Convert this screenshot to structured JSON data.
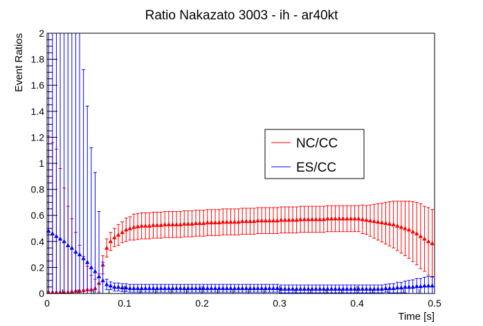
{
  "chart_data": {
    "type": "scatter",
    "title": "Ratio Nakazato 3003 - ih - ar40kt",
    "xlabel": "Time [s]",
    "ylabel": "Event Ratios",
    "xlim": [
      0,
      0.5
    ],
    "ylim": [
      0,
      2
    ],
    "x_ticks": [
      "0",
      "0.1",
      "0.2",
      "0.3",
      "0.4",
      "0.5"
    ],
    "y_ticks": [
      "0",
      "0.2",
      "0.4",
      "0.6",
      "0.8",
      "1",
      "1.2",
      "1.4",
      "1.6",
      "1.8",
      "2"
    ],
    "grid": false,
    "legend_position": "center-right",
    "x": [
      0.002,
      0.007,
      0.012,
      0.017,
      0.022,
      0.027,
      0.032,
      0.037,
      0.042,
      0.047,
      0.052,
      0.057,
      0.062,
      0.067,
      0.072,
      0.077,
      0.082,
      0.087,
      0.092,
      0.097,
      0.102,
      0.107,
      0.112,
      0.117,
      0.122,
      0.127,
      0.132,
      0.137,
      0.142,
      0.147,
      0.152,
      0.157,
      0.162,
      0.167,
      0.172,
      0.177,
      0.182,
      0.187,
      0.192,
      0.197,
      0.202,
      0.207,
      0.212,
      0.217,
      0.222,
      0.227,
      0.232,
      0.237,
      0.242,
      0.247,
      0.252,
      0.257,
      0.262,
      0.267,
      0.272,
      0.277,
      0.282,
      0.287,
      0.292,
      0.297,
      0.302,
      0.307,
      0.312,
      0.317,
      0.322,
      0.327,
      0.332,
      0.337,
      0.342,
      0.347,
      0.352,
      0.357,
      0.362,
      0.367,
      0.372,
      0.377,
      0.382,
      0.387,
      0.392,
      0.397,
      0.402,
      0.407,
      0.412,
      0.417,
      0.422,
      0.427,
      0.432,
      0.437,
      0.442,
      0.447,
      0.452,
      0.457,
      0.462,
      0.467,
      0.472,
      0.477,
      0.482,
      0.487,
      0.492,
      0.497
    ],
    "series": [
      {
        "name": "NC/CC",
        "color": "#ff0000",
        "values": [
          0.01,
          0.01,
          0.01,
          0.01,
          0.01,
          0.01,
          0.015,
          0.02,
          0.02,
          0.025,
          0.03,
          0.03,
          0.04,
          0.08,
          0.22,
          0.35,
          0.4,
          0.43,
          0.45,
          0.47,
          0.49,
          0.5,
          0.51,
          0.515,
          0.52,
          0.52,
          0.52,
          0.525,
          0.525,
          0.525,
          0.53,
          0.53,
          0.53,
          0.53,
          0.53,
          0.535,
          0.535,
          0.535,
          0.54,
          0.54,
          0.54,
          0.545,
          0.545,
          0.545,
          0.545,
          0.55,
          0.55,
          0.55,
          0.55,
          0.55,
          0.555,
          0.555,
          0.555,
          0.555,
          0.56,
          0.56,
          0.56,
          0.56,
          0.56,
          0.56,
          0.565,
          0.565,
          0.565,
          0.565,
          0.565,
          0.57,
          0.57,
          0.57,
          0.57,
          0.57,
          0.57,
          0.57,
          0.575,
          0.575,
          0.575,
          0.575,
          0.575,
          0.575,
          0.575,
          0.575,
          0.575,
          0.57,
          0.565,
          0.56,
          0.555,
          0.55,
          0.545,
          0.54,
          0.535,
          0.53,
          0.52,
          0.51,
          0.5,
          0.49,
          0.475,
          0.46,
          0.44,
          0.42,
          0.4,
          0.385
        ],
        "errors": [
          1.2,
          1.15,
          1.1,
          0.95,
          0.8,
          0.66,
          0.56,
          0.45,
          0.35,
          0.26,
          0.18,
          0.11,
          0.07,
          0.07,
          0.07,
          0.07,
          0.07,
          0.07,
          0.08,
          0.08,
          0.09,
          0.09,
          0.1,
          0.1,
          0.1,
          0.1,
          0.1,
          0.1,
          0.1,
          0.1,
          0.1,
          0.1,
          0.1,
          0.1,
          0.1,
          0.1,
          0.1,
          0.1,
          0.1,
          0.1,
          0.1,
          0.1,
          0.1,
          0.1,
          0.1,
          0.1,
          0.1,
          0.1,
          0.1,
          0.1,
          0.1,
          0.1,
          0.1,
          0.1,
          0.1,
          0.1,
          0.1,
          0.1,
          0.1,
          0.1,
          0.1,
          0.1,
          0.1,
          0.1,
          0.1,
          0.1,
          0.1,
          0.1,
          0.1,
          0.1,
          0.1,
          0.1,
          0.1,
          0.1,
          0.1,
          0.1,
          0.1,
          0.1,
          0.1,
          0.1,
          0.1,
          0.11,
          0.11,
          0.12,
          0.13,
          0.14,
          0.15,
          0.16,
          0.17,
          0.18,
          0.19,
          0.2,
          0.21,
          0.22,
          0.23,
          0.24,
          0.25,
          0.25,
          0.26,
          0.26
        ]
      },
      {
        "name": "ES/CC",
        "color": "#0000ff",
        "values": [
          0.48,
          0.46,
          0.44,
          0.42,
          0.4,
          0.37,
          0.35,
          0.32,
          0.3,
          0.27,
          0.24,
          0.2,
          0.17,
          0.13,
          0.1,
          0.07,
          0.06,
          0.05,
          0.05,
          0.045,
          0.045,
          0.04,
          0.04,
          0.04,
          0.04,
          0.04,
          0.04,
          0.04,
          0.04,
          0.04,
          0.04,
          0.04,
          0.04,
          0.04,
          0.04,
          0.04,
          0.04,
          0.04,
          0.04,
          0.04,
          0.04,
          0.04,
          0.04,
          0.04,
          0.04,
          0.04,
          0.04,
          0.04,
          0.04,
          0.04,
          0.04,
          0.04,
          0.04,
          0.04,
          0.04,
          0.04,
          0.04,
          0.04,
          0.04,
          0.04,
          0.035,
          0.035,
          0.035,
          0.035,
          0.035,
          0.035,
          0.035,
          0.035,
          0.035,
          0.035,
          0.035,
          0.035,
          0.035,
          0.035,
          0.035,
          0.035,
          0.035,
          0.035,
          0.035,
          0.035,
          0.035,
          0.035,
          0.035,
          0.035,
          0.035,
          0.035,
          0.035,
          0.04,
          0.04,
          0.04,
          0.045,
          0.045,
          0.05,
          0.05,
          0.05,
          0.055,
          0.055,
          0.06,
          0.06,
          0.06
        ],
        "errors": [
          2.0,
          2.0,
          2.0,
          2.0,
          2.0,
          2.0,
          1.93,
          1.93,
          1.7,
          1.45,
          1.2,
          0.92,
          0.76,
          0.5,
          0.14,
          0.04,
          0.03,
          0.03,
          0.03,
          0.03,
          0.03,
          0.03,
          0.03,
          0.03,
          0.03,
          0.03,
          0.03,
          0.03,
          0.03,
          0.03,
          0.03,
          0.03,
          0.03,
          0.03,
          0.03,
          0.03,
          0.03,
          0.03,
          0.03,
          0.03,
          0.03,
          0.03,
          0.03,
          0.03,
          0.03,
          0.03,
          0.03,
          0.03,
          0.03,
          0.03,
          0.03,
          0.03,
          0.03,
          0.03,
          0.03,
          0.03,
          0.03,
          0.03,
          0.03,
          0.03,
          0.03,
          0.03,
          0.03,
          0.03,
          0.03,
          0.03,
          0.03,
          0.03,
          0.03,
          0.03,
          0.03,
          0.03,
          0.03,
          0.03,
          0.03,
          0.03,
          0.03,
          0.03,
          0.03,
          0.03,
          0.03,
          0.03,
          0.03,
          0.03,
          0.03,
          0.03,
          0.03,
          0.03,
          0.035,
          0.035,
          0.04,
          0.04,
          0.045,
          0.05,
          0.055,
          0.06,
          0.06,
          0.065,
          0.07,
          0.07
        ]
      }
    ]
  }
}
